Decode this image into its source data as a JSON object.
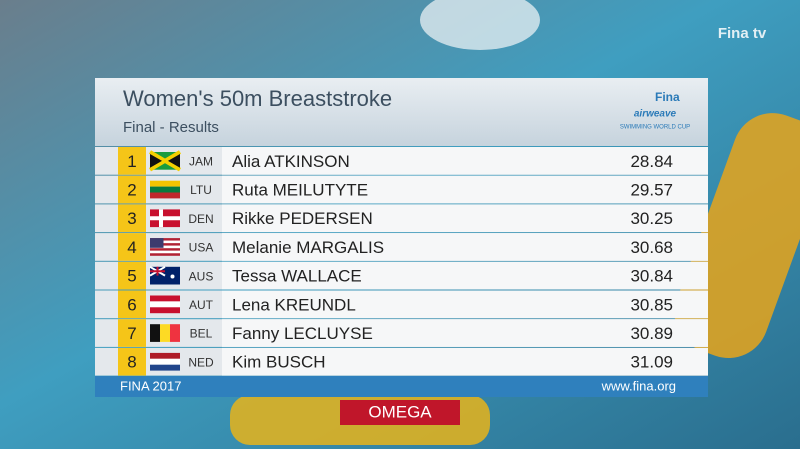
{
  "header": {
    "title": "Women's 50m Breaststroke",
    "subtitle": "Final - Results",
    "logo": {
      "brand": "Fina",
      "sponsor": "airweave",
      "event": "SWIMMING WORLD CUP"
    }
  },
  "channel": "Fina tv",
  "table": {
    "rows": [
      {
        "rank": 1,
        "code": "JAM",
        "name": "Alia ATKINSON",
        "time": "28.84"
      },
      {
        "rank": 2,
        "code": "LTU",
        "name": "Ruta MEILUTYTE",
        "time": "29.57"
      },
      {
        "rank": 3,
        "code": "DEN",
        "name": "Rikke PEDERSEN",
        "time": "30.25"
      },
      {
        "rank": 4,
        "code": "USA",
        "name": "Melanie MARGALIS",
        "time": "30.68"
      },
      {
        "rank": 5,
        "code": "AUS",
        "name": "Tessa WALLACE",
        "time": "30.84"
      },
      {
        "rank": 6,
        "code": "AUT",
        "name": "Lena KREUNDL",
        "time": "30.85"
      },
      {
        "rank": 7,
        "code": "BEL",
        "name": "Fanny LECLUYSE",
        "time": "30.89"
      },
      {
        "rank": 8,
        "code": "NED",
        "name": "Kim BUSCH",
        "time": "31.09"
      }
    ]
  },
  "footer": {
    "left": "FINA 2017",
    "right": "www.fina.org",
    "sponsor": "OMEGA"
  }
}
